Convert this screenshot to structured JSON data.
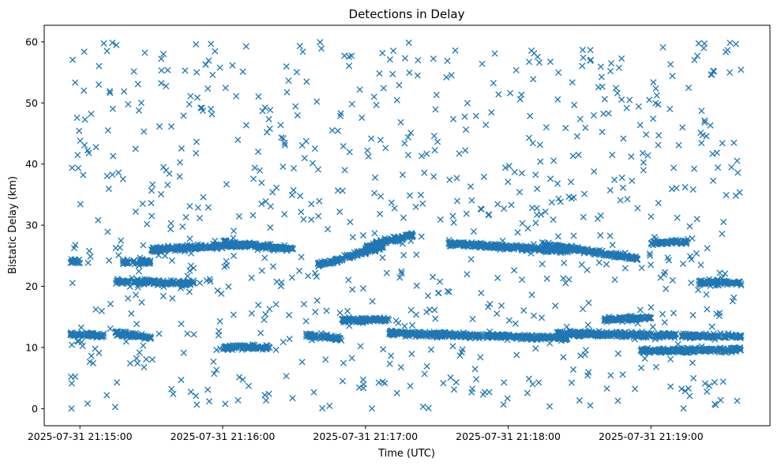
{
  "chart_data": {
    "type": "scatter",
    "title": "Detections in Delay",
    "xlabel": "Time (UTC)",
    "ylabel": "Bistatic Delay (km)",
    "x_axis": "datetime",
    "xlim": [
      "2025-07-31 21:14:45",
      "2025-07-31 21:19:50"
    ],
    "ylim": [
      -2.8,
      62.7
    ],
    "x_ticks": [
      "2025-07-31 21:15:00",
      "2025-07-31 21:16:00",
      "2025-07-31 21:17:00",
      "2025-07-31 21:18:00",
      "2025-07-31 21:19:00"
    ],
    "y_ticks": [
      0,
      10,
      20,
      30,
      40,
      50,
      60
    ],
    "grid": false,
    "legend": "none",
    "marker": "x",
    "color": "#1f77b4",
    "series": [
      {
        "x_start": "2025-07-31 21:14:56",
        "x_end": "2025-07-31 21:19:38",
        "tracks": [
          {
            "start": "2025-07-31 21:14:56",
            "end": "2025-07-31 21:15:10",
            "y_start": 12.2,
            "y_end": 12.0
          },
          {
            "start": "2025-07-31 21:14:56",
            "end": "2025-07-31 21:15:00",
            "y_start": 24.1,
            "y_end": 24.0
          },
          {
            "start": "2025-07-31 21:15:15",
            "end": "2025-07-31 21:15:48",
            "y_start": 20.8,
            "y_end": 20.5
          },
          {
            "start": "2025-07-31 21:15:15",
            "end": "2025-07-31 21:15:30",
            "y_start": 12.3,
            "y_end": 11.6
          },
          {
            "start": "2025-07-31 21:15:18",
            "end": "2025-07-31 21:15:30",
            "y_start": 24.0,
            "y_end": 24.0
          },
          {
            "start": "2025-07-31 21:15:30",
            "end": "2025-07-31 21:16:10",
            "y_start": 26.0,
            "y_end": 26.8
          },
          {
            "start": "2025-07-31 21:16:00",
            "end": "2025-07-31 21:16:20",
            "y_start": 10.0,
            "y_end": 10.0
          },
          {
            "start": "2025-07-31 21:16:00",
            "end": "2025-07-31 21:16:30",
            "y_start": 27.2,
            "y_end": 26.0
          },
          {
            "start": "2025-07-31 21:16:35",
            "end": "2025-07-31 21:16:50",
            "y_start": 12.0,
            "y_end": 11.5
          },
          {
            "start": "2025-07-31 21:16:40",
            "end": "2025-07-31 21:17:08",
            "y_start": 23.5,
            "y_end": 26.5
          },
          {
            "start": "2025-07-31 21:16:50",
            "end": "2025-07-31 21:17:10",
            "y_start": 14.5,
            "y_end": 14.5
          },
          {
            "start": "2025-07-31 21:17:00",
            "end": "2025-07-31 21:17:20",
            "y_start": 26.4,
            "y_end": 28.5
          },
          {
            "start": "2025-07-31 21:17:10",
            "end": "2025-07-31 21:18:25",
            "y_start": 12.3,
            "y_end": 11.5
          },
          {
            "start": "2025-07-31 21:17:35",
            "end": "2025-07-31 21:18:25",
            "y_start": 27.0,
            "y_end": 25.8
          },
          {
            "start": "2025-07-31 21:18:15",
            "end": "2025-07-31 21:18:55",
            "y_start": 26.8,
            "y_end": 24.5
          },
          {
            "start": "2025-07-31 21:18:20",
            "end": "2025-07-31 21:19:38",
            "y_start": 12.3,
            "y_end": 11.8
          },
          {
            "start": "2025-07-31 21:18:40",
            "end": "2025-07-31 21:19:00",
            "y_start": 14.5,
            "y_end": 14.8
          },
          {
            "start": "2025-07-31 21:18:55",
            "end": "2025-07-31 21:19:38",
            "y_start": 9.5,
            "y_end": 9.6
          },
          {
            "start": "2025-07-31 21:19:00",
            "end": "2025-07-31 21:19:15",
            "y_start": 27.2,
            "y_end": 27.3
          },
          {
            "start": "2025-07-31 21:19:20",
            "end": "2025-07-31 21:19:38",
            "y_start": 20.6,
            "y_end": 20.6
          }
        ],
        "scatter_y_range": [
          0,
          60
        ],
        "point_count_approx": 1500
      }
    ]
  }
}
